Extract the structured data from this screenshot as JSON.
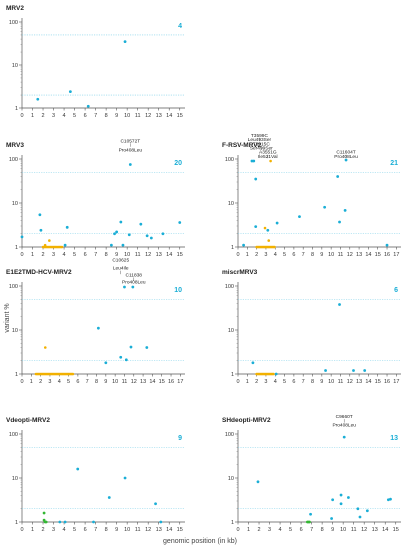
{
  "figure": {
    "ylabel": "variant %",
    "xlabel": "genomic position (in kb)"
  },
  "colors": {
    "point": "#1aaed6",
    "cluster": "#f2b100",
    "green": "#33b733",
    "threshold": "#7fd0e8",
    "count": "#1aaed6"
  },
  "chart_data": [
    {
      "type": "scatter",
      "title": "MRV2",
      "count": "4",
      "yscale": "log",
      "ylim": [
        1,
        100
      ],
      "xlim": [
        0,
        15.5
      ],
      "xticks": [
        "0",
        "1",
        "2",
        "3",
        "4",
        "5",
        "6",
        "7",
        "8",
        "9",
        "10",
        "11",
        "12",
        "13",
        "14",
        "15"
      ],
      "yticks": [
        "1",
        "10",
        "100"
      ],
      "thresholds": [
        50,
        2
      ],
      "points": [
        {
          "x": 1.5,
          "y": 1.6
        },
        {
          "x": 4.6,
          "y": 2.4
        },
        {
          "x": 6.3,
          "y": 1.1
        },
        {
          "x": 9.8,
          "y": 35
        }
      ],
      "clusters": [],
      "green_points": [],
      "annotations": []
    },
    {
      "type": "scatter",
      "title": "F-RSV-MRV2",
      "count": "21",
      "yscale": "log",
      "ylim": [
        1,
        100
      ],
      "xlim": [
        0,
        17.5
      ],
      "xticks": [
        "0",
        "1",
        "2",
        "3",
        "4",
        "5",
        "6",
        "7",
        "8",
        "9",
        "10",
        "11",
        "12",
        "13",
        "14",
        "15",
        "16",
        "17"
      ],
      "yticks": [
        "1",
        "10",
        "100"
      ],
      "thresholds": [
        50,
        2
      ],
      "points": [
        {
          "x": 0.6,
          "y": 1.1
        },
        {
          "x": 1.5,
          "y": 90
        },
        {
          "x": 1.7,
          "y": 90
        },
        {
          "x": 1.9,
          "y": 35
        },
        {
          "x": 1.9,
          "y": 2.9
        },
        {
          "x": 3.2,
          "y": 2.4
        },
        {
          "x": 4.2,
          "y": 3.5
        },
        {
          "x": 6.6,
          "y": 4.9
        },
        {
          "x": 9.3,
          "y": 8
        },
        {
          "x": 10.7,
          "y": 40
        },
        {
          "x": 10.9,
          "y": 3.7
        },
        {
          "x": 11.5,
          "y": 6.8
        },
        {
          "x": 11.6,
          "y": 95
        },
        {
          "x": 16.0,
          "y": 1.1
        }
      ],
      "clusters": [
        {
          "x1": 2.0,
          "x2": 4.0,
          "y": 1.0,
          "extra": [
            {
              "x": 3.5,
              "y": 90
            },
            {
              "x": 2.9,
              "y": 2.7
            },
            {
              "x": 3.3,
              "y": 1.4
            }
          ]
        }
      ],
      "green_points": [],
      "annotations": [
        {
          "text": "T3599C",
          "x": 2.3,
          "y": 320,
          "line": true
        },
        {
          "text": "Leu493Ser",
          "x": 2.3,
          "y": 255,
          "line": false
        },
        {
          "text": "T3615C",
          "x": 2.5,
          "y": 205,
          "line": true
        },
        {
          "text": "Ser499Ser",
          "x": 2.5,
          "y": 165,
          "line": false
        },
        {
          "text": "A3551G",
          "x": 3.2,
          "y": 132,
          "line": true
        },
        {
          "text": "Ile521Val",
          "x": 3.2,
          "y": 105,
          "line": false
        },
        {
          "text": "C11604T",
          "x": 11.6,
          "y": 132,
          "line": true
        },
        {
          "text": "Pro408Leu",
          "x": 11.6,
          "y": 105,
          "line": false
        }
      ]
    },
    {
      "type": "scatter",
      "title": "MRV3",
      "count": "20",
      "yscale": "log",
      "ylim": [
        1,
        100
      ],
      "xlim": [
        0,
        15.5
      ],
      "xticks": [
        "0",
        "1",
        "2",
        "3",
        "4",
        "5",
        "6",
        "7",
        "8",
        "9",
        "10",
        "11",
        "12",
        "13",
        "14",
        "15"
      ],
      "yticks": [
        "1",
        "10",
        "100"
      ],
      "thresholds": [
        50,
        2
      ],
      "points": [
        {
          "x": 0.0,
          "y": 1.7
        },
        {
          "x": 1.7,
          "y": 5.4
        },
        {
          "x": 1.8,
          "y": 2.4
        },
        {
          "x": 4.1,
          "y": 1.1
        },
        {
          "x": 4.3,
          "y": 2.8
        },
        {
          "x": 8.5,
          "y": 1.1
        },
        {
          "x": 8.8,
          "y": 2.0
        },
        {
          "x": 9.0,
          "y": 2.2
        },
        {
          "x": 9.4,
          "y": 3.7
        },
        {
          "x": 9.6,
          "y": 1.1
        },
        {
          "x": 10.3,
          "y": 75
        },
        {
          "x": 10.2,
          "y": 1.9
        },
        {
          "x": 11.3,
          "y": 3.3
        },
        {
          "x": 11.9,
          "y": 1.8
        },
        {
          "x": 12.3,
          "y": 1.6
        },
        {
          "x": 13.4,
          "y": 2.0
        },
        {
          "x": 15.0,
          "y": 3.6
        }
      ],
      "clusters": [
        {
          "x1": 2.0,
          "x2": 3.9,
          "y": 1.0,
          "extra": [
            {
              "x": 2.6,
              "y": 1.4
            },
            {
              "x": 2.2,
              "y": 1.1
            }
          ]
        }
      ],
      "green_points": [],
      "annotations": [
        {
          "text": "C10572T",
          "x": 10.3,
          "y": 240,
          "line": true
        },
        {
          "text": "Pro408Leu",
          "x": 10.3,
          "y": 150,
          "line": false
        }
      ]
    },
    {
      "type": "scatter",
      "title": "E1E2TMD-HCV-MRV2",
      "count": "10",
      "yscale": "log",
      "ylim": [
        1,
        100
      ],
      "xlim": [
        0,
        17.5
      ],
      "xticks": [
        "0",
        "1",
        "2",
        "3",
        "4",
        "5",
        "6",
        "7",
        "8",
        "9",
        "10",
        "11",
        "12",
        "13",
        "14",
        "15",
        "16",
        "17"
      ],
      "yticks": [
        "1",
        "10",
        "100"
      ],
      "thresholds": [
        50,
        2
      ],
      "points": [
        {
          "x": 8.2,
          "y": 11
        },
        {
          "x": 9.0,
          "y": 1.8
        },
        {
          "x": 10.6,
          "y": 2.4
        },
        {
          "x": 11.2,
          "y": 2.1
        },
        {
          "x": 11.0,
          "y": 95
        },
        {
          "x": 11.7,
          "y": 4.1
        },
        {
          "x": 11.9,
          "y": 95
        },
        {
          "x": 13.4,
          "y": 4.0
        }
      ],
      "clusters": [
        {
          "x1": 1.5,
          "x2": 5.5,
          "y": 1.0,
          "extra": [
            {
              "x": 2.5,
              "y": 4.0
            }
          ]
        }
      ],
      "green_points": [],
      "annotations": [
        {
          "text": "C10625",
          "x": 10.6,
          "y": 360,
          "line": false
        },
        {
          "text": "Leu4Ile",
          "x": 10.6,
          "y": 235,
          "line": true
        },
        {
          "text": "C11838",
          "x": 12.0,
          "y": 165,
          "line": true
        },
        {
          "text": "Pro408Leu",
          "x": 12.0,
          "y": 115,
          "line": false
        }
      ]
    },
    {
      "type": "scatter",
      "title": "miscrMRV3",
      "count": "6",
      "yscale": "log",
      "ylim": [
        1,
        100
      ],
      "xlim": [
        0,
        17.5
      ],
      "xticks": [
        "0",
        "1",
        "2",
        "3",
        "4",
        "5",
        "6",
        "7",
        "8",
        "9",
        "10",
        "11",
        "12",
        "13",
        "14",
        "15",
        "16",
        "17"
      ],
      "yticks": [
        "1",
        "10",
        "100"
      ],
      "thresholds": [
        50,
        2
      ],
      "points": [
        {
          "x": 1.6,
          "y": 1.8
        },
        {
          "x": 4.1,
          "y": 1.0
        },
        {
          "x": 9.4,
          "y": 1.2
        },
        {
          "x": 10.9,
          "y": 38
        },
        {
          "x": 12.4,
          "y": 1.2
        },
        {
          "x": 13.6,
          "y": 1.2
        }
      ],
      "clusters": [
        {
          "x1": 2.0,
          "x2": 3.8,
          "y": 1.0,
          "extra": []
        }
      ],
      "green_points": [],
      "annotations": []
    },
    {
      "type": "scatter",
      "title": "Vdeopti-MRV2",
      "count": "9",
      "yscale": "log",
      "ylim": [
        1,
        100
      ],
      "xlim": [
        0,
        15.5
      ],
      "xticks": [
        "0",
        "1",
        "2",
        "3",
        "4",
        "5",
        "6",
        "7",
        "8",
        "9",
        "10",
        "11",
        "12",
        "13",
        "14",
        "15"
      ],
      "yticks": [
        "1",
        "10",
        "100"
      ],
      "thresholds": [
        50,
        2
      ],
      "points": [
        {
          "x": 3.6,
          "y": 1.0
        },
        {
          "x": 4.1,
          "y": 1.0
        },
        {
          "x": 5.3,
          "y": 16
        },
        {
          "x": 6.8,
          "y": 1.0
        },
        {
          "x": 8.3,
          "y": 3.6
        },
        {
          "x": 9.8,
          "y": 10
        },
        {
          "x": 12.7,
          "y": 2.6
        },
        {
          "x": 13.2,
          "y": 1.0
        }
      ],
      "clusters": [],
      "green_points": [
        {
          "x": 2.1,
          "y": 1.6
        },
        {
          "x": 2.1,
          "y": 1.1
        },
        {
          "x": 2.2,
          "y": 1.0
        },
        {
          "x": 2.3,
          "y": 1.0
        }
      ],
      "annotations": []
    },
    {
      "type": "scatter",
      "title": "SHdeopti-MRV2",
      "count": "13",
      "yscale": "log",
      "ylim": [
        1,
        100
      ],
      "xlim": [
        0,
        15.5
      ],
      "xticks": [
        "0",
        "1",
        "2",
        "3",
        "4",
        "5",
        "6",
        "7",
        "8",
        "9",
        "10",
        "11",
        "12",
        "13",
        "14",
        "15"
      ],
      "yticks": [
        "1",
        "10",
        "100"
      ],
      "thresholds": [
        50,
        2
      ],
      "points": [
        {
          "x": 1.9,
          "y": 8.2
        },
        {
          "x": 6.9,
          "y": 1.5
        },
        {
          "x": 8.9,
          "y": 1.2
        },
        {
          "x": 9.0,
          "y": 3.2
        },
        {
          "x": 9.8,
          "y": 2.6
        },
        {
          "x": 9.8,
          "y": 4.1
        },
        {
          "x": 10.1,
          "y": 85
        },
        {
          "x": 10.5,
          "y": 3.6
        },
        {
          "x": 11.4,
          "y": 2.0
        },
        {
          "x": 11.6,
          "y": 1.3
        },
        {
          "x": 12.3,
          "y": 1.8
        },
        {
          "x": 14.3,
          "y": 3.2
        },
        {
          "x": 14.5,
          "y": 3.3
        }
      ],
      "clusters": [],
      "green_points": [
        {
          "x": 6.6,
          "y": 1.0
        },
        {
          "x": 6.7,
          "y": 1.0
        },
        {
          "x": 6.8,
          "y": 1.0
        }
      ],
      "annotations": [
        {
          "text": "C9660T",
          "x": 10.1,
          "y": 230,
          "line": true
        },
        {
          "text": "Pro408Leu",
          "x": 10.1,
          "y": 150,
          "line": false
        }
      ]
    }
  ]
}
